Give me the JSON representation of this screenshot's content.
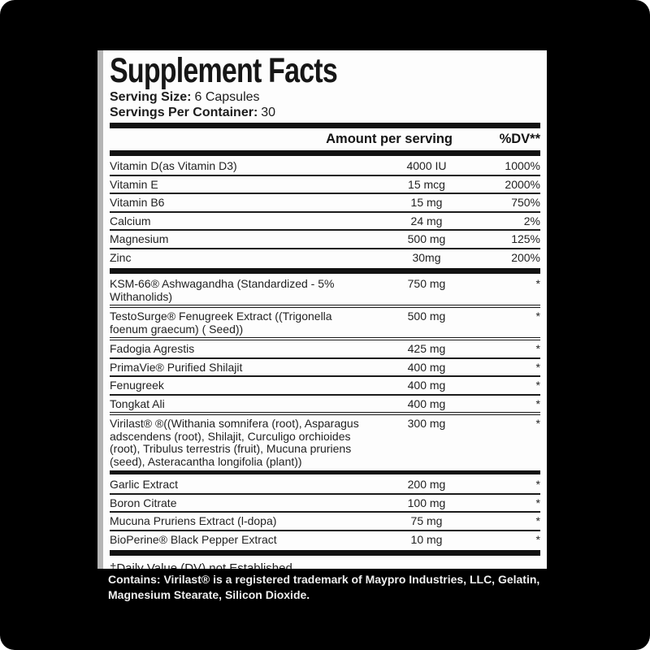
{
  "label": {
    "title": "Supplement Facts",
    "serving_size_label": "Serving Size:",
    "serving_size_value": "6 Capsules",
    "servings_per_container_label": "Servings Per Container:",
    "servings_per_container_value": "30",
    "col_amount_header": "Amount per serving",
    "col_dv_header": "%DV**",
    "sections": [
      {
        "name": "vitamins-minerals",
        "rows": [
          {
            "name": "Vitamin D(as Vitamin D3)",
            "amount": "4000 IU",
            "dv": "1000%"
          },
          {
            "name": "Vitamin E",
            "amount": "15 mcg",
            "dv": "2000%"
          },
          {
            "name": "Vitamin B6",
            "amount": "15 mg",
            "dv": "750%"
          },
          {
            "name": "Calcium",
            "amount": "24 mg",
            "dv": "2%"
          },
          {
            "name": "Magnesium",
            "amount": "500 mg",
            "dv": "125%"
          },
          {
            "name": "Zinc",
            "amount": "30mg",
            "dv": "200%"
          }
        ]
      },
      {
        "name": "herbal-blend",
        "rows": [
          {
            "name": "KSM-66® Ashwagandha (Standardized - 5% Withanolids)",
            "amount": "750 mg",
            "dv": "*",
            "divider": "double"
          },
          {
            "name": "TestoSurge® Fenugreek Extract ((Trigonella foenum graecum) ( Seed))",
            "amount": "500 mg",
            "dv": "*",
            "divider": "double"
          },
          {
            "name": "Fadogia Agrestis",
            "amount": "425 mg",
            "dv": "*"
          },
          {
            "name": "PrimaVie® Purified Shilajit",
            "amount": "400 mg",
            "dv": "*"
          },
          {
            "name": "Fenugreek",
            "amount": "400 mg",
            "dv": "*"
          },
          {
            "name": "Tongkat Ali",
            "amount": "400 mg",
            "dv": "*",
            "divider": "double"
          },
          {
            "name": "Virilast® ®((Withania somnifera (root), Asparagus adscendens (root), Shilajit, Curculigo orchioides (root), Tribulus terrestris (fruit), Mucuna pruriens (seed), Asteracantha longifolia (plant))",
            "amount": "300 mg",
            "dv": "*"
          }
        ]
      },
      {
        "name": "extracts",
        "rows": [
          {
            "name": "Garlic Extract",
            "amount": "200 mg",
            "dv": "*"
          },
          {
            "name": "Boron Citrate",
            "amount": "100 mg",
            "dv": "*"
          },
          {
            "name": "Mucuna Pruriens Extract (l-dopa)",
            "amount": "75 mg",
            "dv": "*"
          },
          {
            "name": "BioPerine® Black Pepper Extract",
            "amount": "10 mg",
            "dv": "*"
          }
        ]
      }
    ],
    "footnote": "‡Daily Value (DV) not Established."
  },
  "footer": {
    "text": "Contains: Virilast® is a registered trademark of Maypro Industries, LLC, Gelatin, Magnesium Stearate, Silicon Dioxide."
  },
  "colors": {
    "background": "#000000",
    "panel": "#fdfdfd",
    "ink": "#1a1a1a",
    "left_border": "#b5b5b5",
    "footer_text": "#f0f0f0"
  }
}
